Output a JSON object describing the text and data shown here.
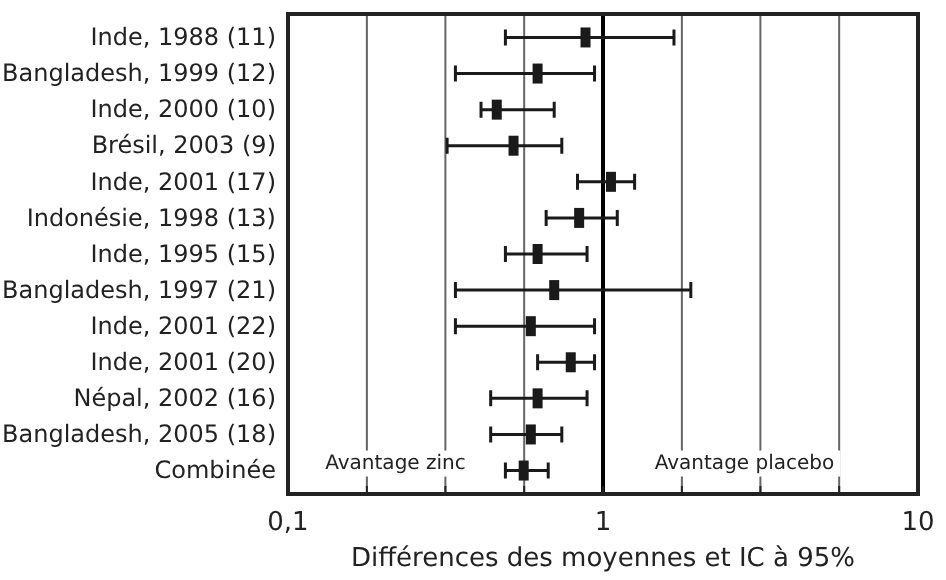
{
  "chart_data": {
    "type": "scatter",
    "orientation": "horizontal",
    "log": "x",
    "marker": "square",
    "grid": "x",
    "xlabel": "Différences des moyennes et IC à 95%",
    "categories": [
      "Inde, 1988 (11)",
      "Bangladesh, 1999 (12)",
      "Inde, 2000 (10)",
      "Brésil, 2003 (9)",
      "Inde, 2001 (17)",
      "Indonésie, 1998 (13)",
      "Inde, 1995 (15)",
      "Bangladesh, 1997 (21)",
      "Inde, 2001 (22)",
      "Inde, 2001 (20)",
      "Népal, 2002 (16)",
      "Bangladesh, 2005 (18)",
      "Combinée"
    ],
    "values": [
      0.88,
      0.62,
      0.46,
      0.52,
      1.06,
      0.84,
      0.62,
      0.7,
      0.59,
      0.79,
      0.62,
      0.59,
      0.56
    ],
    "errors": [
      [
        0.49,
        1.68
      ],
      [
        0.34,
        0.94
      ],
      [
        0.41,
        0.7
      ],
      [
        0.32,
        0.74
      ],
      [
        0.83,
        1.26
      ],
      [
        0.66,
        1.11
      ],
      [
        0.49,
        0.89
      ],
      [
        0.34,
        1.9
      ],
      [
        0.34,
        0.94
      ],
      [
        0.62,
        0.94
      ],
      [
        0.44,
        0.89
      ],
      [
        0.44,
        0.74
      ],
      [
        0.49,
        0.67
      ]
    ],
    "color": "#1a1a1a",
    "xlim": [
      0.1,
      10
    ],
    "xticks": [
      {
        "value": 0.1,
        "label": "0,1"
      },
      {
        "value": 0.178,
        "label": null
      },
      {
        "value": 0.316,
        "label": null
      },
      {
        "value": 0.562,
        "label": null
      },
      1,
      {
        "value": 1.78,
        "label": null
      },
      {
        "value": 3.16,
        "label": null
      },
      {
        "value": 5.62,
        "label": null
      },
      10
    ],
    "ref_lines": [
      {
        "axis": "x",
        "value": 1,
        "color": "#000000"
      }
    ],
    "annotations": [
      "Avantage zinc",
      "Avantage placebo"
    ]
  }
}
